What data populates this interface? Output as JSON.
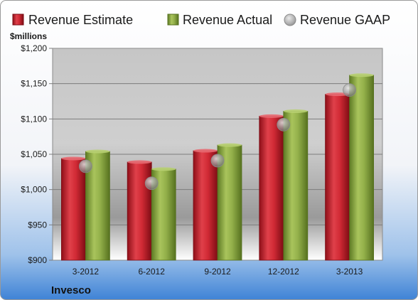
{
  "colors": {
    "estimate": "#c8202b",
    "actual": "#8daa44",
    "gaap": "#a8a8a8",
    "frame": "#8a8a8a",
    "background_top": "#ffffff",
    "background_bottom": "#4f8ed8",
    "plot_top": "#c4c4c4",
    "plot_bottom": "#ffffff"
  },
  "chart_data": {
    "type": "bar",
    "title": "",
    "company": "Invesco",
    "ylabel": "$millions",
    "xlabel": "",
    "legend_position": "top",
    "grid": true,
    "ylim": [
      900,
      1200
    ],
    "yticks": [
      900,
      950,
      1000,
      1050,
      1100,
      1150,
      1200
    ],
    "ytick_labels": [
      "$900",
      "$950",
      "$1,000",
      "$1,050",
      "$1,100",
      "$1,150",
      "$1,200"
    ],
    "categories": [
      "3-2012",
      "6-2012",
      "9-2012",
      "12-2012",
      "3-2013"
    ],
    "series": [
      {
        "name": "Revenue Estimate",
        "kind": "bar",
        "color": "#c8202b",
        "values": [
          1044,
          1039,
          1055,
          1104,
          1135
        ]
      },
      {
        "name": "Revenue Actual",
        "kind": "bar",
        "color": "#8daa44",
        "values": [
          1054,
          1029,
          1063,
          1111,
          1162
        ]
      },
      {
        "name": "Revenue GAAP",
        "kind": "marker",
        "color": "#a8a8a8",
        "values": [
          1033,
          1009,
          1041,
          1092,
          1141
        ]
      }
    ]
  }
}
